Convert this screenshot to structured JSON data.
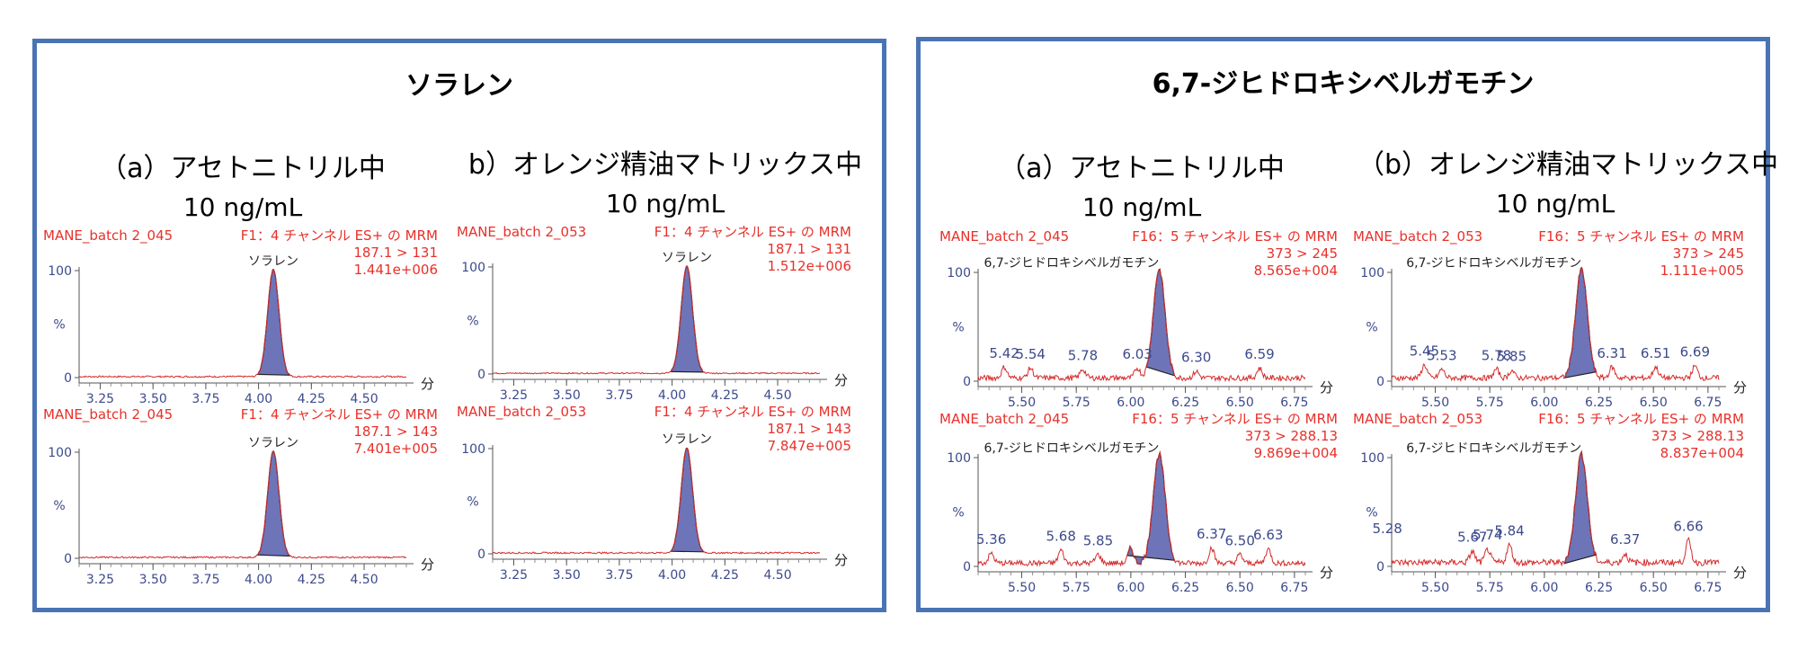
{
  "panels": [
    {
      "title": "ソラレン",
      "columns": [
        {
          "condition": "（a）アセトニトリル中",
          "concentration": "10 ng/mL"
        },
        {
          "condition": "b）オレンジ精油マトリックス中",
          "concentration": "10 ng/mL"
        }
      ]
    },
    {
      "title": "6,7-ジヒドロキシベルガモチン",
      "columns": [
        {
          "condition": "（a）アセトニトリル中",
          "concentration": "10 ng/mL"
        },
        {
          "condition": "（b）オレンジ精油マトリックス中",
          "concentration": "10 ng/mL"
        }
      ]
    }
  ],
  "chart_data": [
    {
      "type": "line",
      "sample": "MANE_batch 2_045",
      "function": "F1：4 チャンネル ES+ の MRM",
      "transition": "187.1 > 131",
      "intensity": "1.441e+006",
      "peak_label": "ソラレン",
      "ylabel": "%",
      "ymax_label": "100",
      "ymin_label": "0",
      "xunit": "分",
      "xlim": [
        3.15,
        4.7
      ],
      "xticks": [
        "3.25",
        "3.50",
        "3.75",
        "4.00",
        "4.25",
        "4.50"
      ],
      "peak_rt": 4.07,
      "peak_width": 0.027,
      "peak_fill_range": [
        3.99,
        4.15
      ],
      "baseline_noise": 1.5,
      "small_bumps": [],
      "retention_labels": []
    },
    {
      "type": "line",
      "sample": "MANE_batch 2_053",
      "function": "F1：4 チャンネル ES+ の MRM",
      "transition": "187.1 > 131",
      "intensity": "1.512e+006",
      "peak_label": "ソラレン",
      "ylabel": "%",
      "ymax_label": "100",
      "ymin_label": "0",
      "xunit": "分",
      "xlim": [
        3.15,
        4.7
      ],
      "xticks": [
        "3.25",
        "3.50",
        "3.75",
        "4.00",
        "4.25",
        "4.50"
      ],
      "peak_rt": 4.07,
      "peak_width": 0.027,
      "peak_fill_range": [
        3.99,
        4.15
      ],
      "baseline_noise": 1.2,
      "small_bumps": [],
      "retention_labels": []
    },
    {
      "type": "line",
      "sample": "MANE_batch 2_045",
      "function": "F1：4 チャンネル ES+ の MRM",
      "transition": "187.1 > 143",
      "intensity": "7.401e+005",
      "peak_label": "ソラレン",
      "ylabel": "%",
      "ymax_label": "100",
      "ymin_label": "0",
      "xunit": "分",
      "xlim": [
        3.15,
        4.7
      ],
      "xticks": [
        "3.25",
        "3.50",
        "3.75",
        "4.00",
        "4.25",
        "4.50"
      ],
      "peak_rt": 4.07,
      "peak_width": 0.027,
      "peak_fill_range": [
        3.99,
        4.15
      ],
      "baseline_noise": 1.5,
      "small_bumps": [],
      "retention_labels": []
    },
    {
      "type": "line",
      "sample": "MANE_batch 2_053",
      "function": "F1：4 チャンネル ES+ の MRM",
      "transition": "187.1 > 143",
      "intensity": "7.847e+005",
      "peak_label": "ソラレン",
      "ylabel": "%",
      "ymax_label": "100",
      "ymin_label": "0",
      "xunit": "分",
      "xlim": [
        3.15,
        4.7
      ],
      "xticks": [
        "3.25",
        "3.50",
        "3.75",
        "4.00",
        "4.25",
        "4.50"
      ],
      "peak_rt": 4.07,
      "peak_width": 0.027,
      "peak_fill_range": [
        3.99,
        4.15
      ],
      "baseline_noise": 1.5,
      "small_bumps": [],
      "retention_labels": []
    },
    {
      "type": "line",
      "sample": "MANE_batch 2_045",
      "function": "F16：5 チャンネル ES+ の MRM",
      "transition": "373 > 245",
      "intensity": "8.565e+004",
      "peak_label": "6,7-ジヒドロキシベルガモチン",
      "ylabel": "%",
      "ymax_label": "100",
      "ymin_label": "0",
      "xunit": "分",
      "xlim": [
        5.3,
        6.8
      ],
      "xticks": [
        "5.50",
        "5.75",
        "6.00",
        "6.25",
        "6.50",
        "6.75"
      ],
      "peak_rt": 6.13,
      "peak_width": 0.027,
      "peak_fill_range": [
        6.07,
        6.2
      ],
      "baseline_noise": 5,
      "small_bumps": [
        [
          5.42,
          10
        ],
        [
          5.54,
          9
        ],
        [
          5.78,
          8
        ],
        [
          6.03,
          9
        ],
        [
          6.3,
          6
        ],
        [
          6.59,
          9
        ]
      ],
      "retention_labels": [
        "5.42",
        "5.54",
        "5.78",
        "6.03",
        "6.30",
        "6.59"
      ]
    },
    {
      "type": "line",
      "sample": "MANE_batch 2_053",
      "function": "F16：5 チャンネル ES+ の MRM",
      "transition": "373 > 245",
      "intensity": "1.111e+005",
      "peak_label": "6,7-ジヒドロキシベルガモチン",
      "ylabel": "%",
      "ymax_label": "100",
      "ymin_label": "0",
      "xunit": "分",
      "xlim": [
        5.3,
        6.8
      ],
      "xticks": [
        "5.50",
        "5.75",
        "6.00",
        "6.25",
        "6.50",
        "6.75"
      ],
      "peak_rt": 6.17,
      "peak_width": 0.027,
      "peak_fill_range": [
        6.09,
        6.24
      ],
      "baseline_noise": 5,
      "small_bumps": [
        [
          5.45,
          12
        ],
        [
          5.53,
          8
        ],
        [
          5.78,
          8
        ],
        [
          5.85,
          7
        ],
        [
          6.31,
          10
        ],
        [
          6.51,
          10
        ],
        [
          6.69,
          11
        ]
      ],
      "retention_labels": [
        "5.45",
        "5.53",
        "5.78",
        "5.85",
        "6.31",
        "6.51",
        "6.69"
      ]
    },
    {
      "type": "line",
      "sample": "MANE_batch 2_045",
      "function": "F16：5 チャンネル ES+ の MRM",
      "transition": "373 > 288.13",
      "intensity": "9.869e+004",
      "peak_label": "6,7-ジヒドロキシベルガモチン",
      "ylabel": "%",
      "ymax_label": "100",
      "ymin_label": "0",
      "xunit": "分",
      "xlim": [
        5.3,
        6.8
      ],
      "xticks": [
        "5.50",
        "5.75",
        "6.00",
        "6.25",
        "6.50",
        "6.75"
      ],
      "peak_rt": 6.13,
      "peak_width": 0.028,
      "peak_fill_range": [
        5.98,
        6.2
      ],
      "baseline_noise": 5,
      "small_bumps": [
        [
          5.36,
          9
        ],
        [
          5.68,
          12
        ],
        [
          5.85,
          8
        ],
        [
          6.0,
          14
        ],
        [
          6.37,
          14
        ],
        [
          6.5,
          8
        ],
        [
          6.63,
          13
        ]
      ],
      "retention_labels": [
        "5.36",
        "5.68",
        "5.85",
        "6.37",
        "6.50",
        "6.63"
      ]
    },
    {
      "type": "line",
      "sample": "MANE_batch 2_053",
      "function": "F16：5 チャンネル ES+ の MRM",
      "transition": "373 > 288.13",
      "intensity": "8.837e+004",
      "peak_label": "6,7-ジヒドロキシベルガモチン",
      "ylabel": "%",
      "ymax_label": "100",
      "ymin_label": "0",
      "xunit": "分",
      "xlim": [
        5.3,
        6.8
      ],
      "xticks": [
        "5.50",
        "5.75",
        "6.00",
        "6.25",
        "6.50",
        "6.75"
      ],
      "peak_rt": 6.17,
      "peak_width": 0.027,
      "peak_fill_range": [
        6.09,
        6.24
      ],
      "baseline_noise": 6,
      "small_bumps": [
        [
          5.28,
          18
        ],
        [
          5.67,
          10
        ],
        [
          5.74,
          12
        ],
        [
          5.84,
          16
        ],
        [
          6.37,
          8
        ],
        [
          6.66,
          20
        ]
      ],
      "retention_labels": [
        "5.28",
        "5.67",
        "5.74",
        "5.84",
        "6.37",
        "6.66"
      ]
    }
  ],
  "colors": {
    "border": "#4a73b4",
    "header_text": "#e8302a",
    "trace": "#d42b2b",
    "peak_fill": "#6e74b8",
    "axis_label": "#3c4a8c"
  }
}
